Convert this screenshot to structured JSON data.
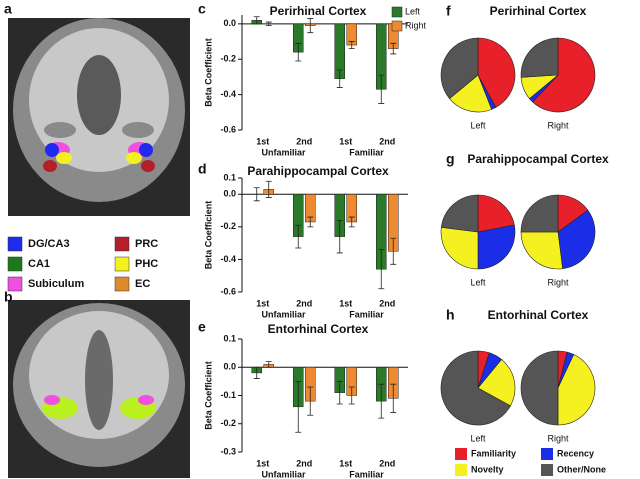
{
  "panels": {
    "a": "a",
    "b": "b"
  },
  "regions": [
    {
      "label": "DG/CA3",
      "color": "#1f2bf0"
    },
    {
      "label": "PRC",
      "color": "#b3202a"
    },
    {
      "label": "CA1",
      "color": "#1c7a1c"
    },
    {
      "label": "PHC",
      "color": "#f2f020"
    },
    {
      "label": "Subiculum",
      "color": "#f050e0"
    },
    {
      "label": "EC",
      "color": "#e08a30"
    }
  ],
  "chart_data": [
    {
      "type": "bar",
      "panel": "c",
      "title": "Perirhinal Cortex",
      "ylabel": "Beta Coefficient",
      "categories": [
        "1st",
        "2nd",
        "1st",
        "2nd"
      ],
      "group_labels": [
        "Unfamiliar",
        "Familiar"
      ],
      "ylim": [
        -0.6,
        0.05
      ],
      "yticks": [
        {
          "value": 0,
          "label": "0.0"
        },
        -0.2,
        -0.4,
        -0.6
      ],
      "series": [
        {
          "name": "Left",
          "color": "#2a7a2a",
          "values": [
            0.02,
            -0.16,
            -0.31,
            -0.37
          ],
          "errors": [
            0.02,
            0.05,
            0.05,
            0.08
          ]
        },
        {
          "name": "Right",
          "color": "#f08a30",
          "values": [
            0.0,
            -0.01,
            -0.12,
            -0.14
          ],
          "errors": [
            0.01,
            0.04,
            0.02,
            0.03
          ]
        }
      ]
    },
    {
      "type": "bar",
      "panel": "d",
      "title": "Parahippocampal Cortex",
      "ylabel": "Beta Coefficient",
      "categories": [
        "1st",
        "2nd",
        "1st",
        "2nd"
      ],
      "group_labels": [
        "Unfamiliar",
        "Familiar"
      ],
      "ylim": [
        -0.6,
        0.1
      ],
      "yticks": [
        0.1,
        {
          "value": 0,
          "label": "0.0"
        },
        -0.2,
        -0.4,
        -0.6
      ],
      "series": [
        {
          "color": "#2a7a2a",
          "values": [
            0.0,
            -0.26,
            -0.26,
            -0.46
          ],
          "errors": [
            0.04,
            0.07,
            0.1,
            0.12
          ]
        },
        {
          "color": "#f08a30",
          "values": [
            0.03,
            -0.17,
            -0.17,
            -0.35
          ],
          "errors": [
            0.05,
            0.03,
            0.03,
            0.08
          ]
        }
      ]
    },
    {
      "type": "bar",
      "panel": "e",
      "title": "Entorhinal Cortex",
      "ylabel": "Beta Coefficient",
      "categories": [
        "1st",
        "2nd",
        "1st",
        "2nd"
      ],
      "group_labels": [
        "Unfamiliar",
        "Familiar"
      ],
      "ylim": [
        -0.3,
        0.1
      ],
      "yticks": [
        0.1,
        {
          "value": 0,
          "label": "0.0"
        },
        -0.1,
        -0.2,
        -0.3
      ],
      "series": [
        {
          "color": "#2a7a2a",
          "values": [
            -0.02,
            -0.14,
            -0.09,
            -0.12
          ],
          "errors": [
            0.02,
            0.09,
            0.04,
            0.06
          ]
        },
        {
          "color": "#f08a30",
          "values": [
            0.01,
            -0.12,
            -0.1,
            -0.11
          ],
          "errors": [
            0.01,
            0.05,
            0.03,
            0.05
          ]
        }
      ]
    },
    {
      "type": "pie",
      "panel": "f",
      "title": "Perirhinal Cortex",
      "pies": [
        {
          "label": "Left",
          "values": [
            42,
            2,
            20,
            36
          ]
        },
        {
          "label": "Right",
          "values": [
            62,
            2,
            10,
            26
          ]
        }
      ]
    },
    {
      "type": "pie",
      "panel": "g",
      "title": "Parahippocampal Cortex",
      "pies": [
        {
          "label": "Left",
          "values": [
            22,
            28,
            27,
            23
          ]
        },
        {
          "label": "Right",
          "values": [
            15,
            33,
            27,
            25
          ]
        }
      ]
    },
    {
      "type": "pie",
      "panel": "h",
      "title": "Entorhinal Cortex",
      "pies": [
        {
          "label": "Left",
          "values": [
            5,
            6,
            22,
            67
          ]
        },
        {
          "label": "Right",
          "values": [
            4,
            3,
            43,
            50
          ]
        }
      ]
    }
  ],
  "pie_legend": {
    "categories": [
      "Familiarity",
      "Recency",
      "Novelty",
      "Other/None"
    ],
    "colors": [
      "#e8202a",
      "#1a2ee8",
      "#f5f020",
      "#555555"
    ]
  }
}
